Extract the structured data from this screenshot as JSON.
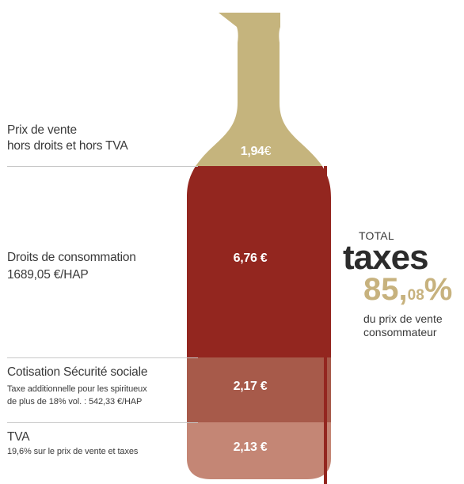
{
  "chart_data": {
    "type": "stacked-bar",
    "currency": "€",
    "segments": [
      {
        "name": "Prix de vente",
        "name_line2": "hors droits et hors TVA",
        "detail": "",
        "detail_line2": "",
        "value": 1.94,
        "value_label": "1,94",
        "color": "#c5b47d"
      },
      {
        "name": "Droits de consommation",
        "name_line2": "",
        "detail": "1689,05 €/HAP",
        "detail_line2": "",
        "value": 6.76,
        "value_label": "6,76 €",
        "color": "#93261f"
      },
      {
        "name": "Cotisation Sécurité sociale",
        "name_line2": "",
        "detail": "Taxe additionnelle pour les spiritueux",
        "detail_line2": "de plus de 18% vol. : 542,33 €/HAP",
        "value": 2.17,
        "value_label": "2,17 €",
        "color": "#a75a4a"
      },
      {
        "name": "TVA",
        "name_line2": "",
        "detail": "19,6% sur le prix de vente et taxes",
        "detail_line2": "",
        "value": 2.13,
        "value_label": "2,13 €",
        "color": "#c48675"
      }
    ],
    "neck_color": "#c5b47d",
    "bracket_color": "#93261f",
    "total": {
      "label": "TOTAL",
      "word": "taxes",
      "percent_int": "85",
      "percent_comma": ",",
      "percent_dec": "08",
      "percent_sign": "%",
      "percent_value": 85.08,
      "desc_line1": "du prix de vente",
      "desc_line2": "consommateur"
    }
  }
}
